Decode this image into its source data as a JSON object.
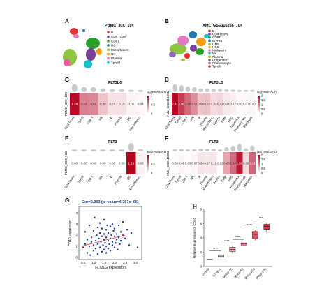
{
  "panels": {
    "A": {
      "letter": "A",
      "title": "PBMC_30K_10×",
      "clusters": [
        "B",
        "CD4 Tconv",
        "CD8T",
        "DC",
        "Mono/Macro",
        "NK",
        "Plasma",
        "Tprolif"
      ],
      "colors": [
        "#e6322d",
        "#7b3f98",
        "#2aa02b",
        "#1f77b4",
        "#8ec641",
        "#f39c12",
        "#e377c2",
        "#17becf"
      ],
      "map_labels": [
        "B",
        "Plasma",
        "DC",
        "CD8T",
        "Mono/Macro",
        "CD4 Tconv"
      ]
    },
    "B": {
      "letter": "B",
      "title": "AML_GSE116256_10×",
      "clusters": [
        "B",
        "CD4 Tconv",
        "CD8T",
        "EryPro",
        "GMP",
        "HSC",
        "Malignant",
        "NK",
        "Plasma",
        "Progenitor",
        "Promonocyte",
        "Tprolif"
      ],
      "colors": [
        "#e6322d",
        "#7b3f98",
        "#2aa02b",
        "#1f77b4",
        "#8ec641",
        "#f39c12",
        "#e377c2",
        "#17becf",
        "#bcbd22",
        "#8c564b",
        "#9467bd",
        "#d62728"
      ]
    },
    "C": {
      "letter": "C",
      "gene": "FLT3LG",
      "ylabel": "PBMC_30K_10X",
      "categories": [
        "CD4 Tconv",
        "Tprolif",
        "CD8 T",
        "NK",
        "B",
        "Plasma",
        "DC",
        "Mono/Macro"
      ],
      "values": [
        "1.24",
        "0.64",
        "0.61",
        "0.30",
        "0.15",
        "0.15",
        "0.05",
        "0.04"
      ],
      "nums": [
        1.24,
        0.64,
        0.61,
        0.3,
        0.15,
        0.15,
        0.05,
        0.04
      ],
      "legend_title": "log(TPM/10+1)",
      "legend_ticks": [
        "1",
        "0.5",
        "0"
      ],
      "max": 1.3
    },
    "D": {
      "letter": "D",
      "gene": "FLT3LG",
      "ylabel": "AML_GSE116256",
      "categories": [
        "CD4 Tconv",
        "Tprolif",
        "CD8 T",
        "NK",
        "B",
        "Plasma",
        "Mono/Macro",
        "EryPro",
        "GMP",
        "HSC",
        "Progenitor",
        "Promonocyte",
        "Malignant"
      ],
      "values": [
        "2.41",
        "1.90",
        "1.46",
        "1.12",
        "0.60",
        "0.62",
        "0.34",
        "0.41",
        "0.24",
        "0.17",
        "0.07",
        "0.07",
        "0.10"
      ],
      "nums": [
        2.41,
        1.9,
        1.46,
        1.12,
        0.6,
        0.62,
        0.34,
        0.41,
        0.24,
        0.17,
        0.07,
        0.07,
        0.1
      ],
      "legend_title": "log(TPM/10+1)",
      "legend_ticks": [
        "2",
        "1.5",
        "1",
        "0.5",
        "0"
      ],
      "max": 2.5
    },
    "E": {
      "letter": "E",
      "gene": "FLT3",
      "ylabel": "PBMC_30K_10X",
      "categories": [
        "CD4 Tconv",
        "Tprolif",
        "CD8 T",
        "NK",
        "B",
        "Plasma",
        "DC",
        "Mono/Macro"
      ],
      "values": [
        "0.00",
        "0.00",
        "0.00",
        "0.00",
        "0.00",
        "0.00",
        "1.19",
        "0.06"
      ],
      "nums": [
        0,
        0,
        0,
        0,
        0,
        0,
        1.19,
        0.06
      ],
      "legend_title": "log(TPM/10+1)",
      "legend_ticks": [
        "1",
        "0.5",
        "0"
      ],
      "max": 1.2
    },
    "F": {
      "letter": "F",
      "gene": "FLT3",
      "ylabel": "AML_GSE116256",
      "categories": [
        "CD4 Tconv",
        "Tprolif",
        "CD8 T",
        "NK",
        "B",
        "Plasma",
        "Mono/Macro",
        "EryPro",
        "GMP",
        "HSC",
        "Progenitor",
        "Promonocyte",
        "Malignant"
      ],
      "values": [
        "0.03",
        "0.08",
        "0.03",
        "0.07",
        "0.20",
        "0.17",
        "0.19",
        "0.02",
        "0.68",
        "1.16",
        "1.82",
        "0.30",
        "1.21"
      ],
      "nums": [
        0.03,
        0.08,
        0.03,
        0.07,
        0.2,
        0.17,
        0.19,
        0.02,
        0.68,
        1.16,
        1.82,
        0.3,
        1.21
      ],
      "legend_title": "log(TPM/10+1)",
      "legend_ticks": [
        "2",
        "1.5",
        "1",
        "0.5",
        "0"
      ],
      "max": 2.0
    },
    "G": {
      "letter": "G",
      "title": "Cor=0.363 (p−value=4.767e−06)",
      "xlabel": "FLT3LG expression",
      "ylabel": "CD40 expression",
      "xticks": [
        "0.5",
        "1.0",
        "1.5",
        "2.0",
        "2.5",
        "3.0"
      ],
      "yticks": [
        "0",
        "1",
        "2",
        "3",
        "4"
      ]
    },
    "H": {
      "letter": "H",
      "ylabel": "Relative expression of CD40",
      "categories": [
        "control",
        "group-1",
        "group-10",
        "group-50",
        "group-100",
        "group-200"
      ],
      "yticks": [
        "0",
        "2",
        "4",
        "6",
        "8"
      ],
      "sig": [
        "****",
        "****",
        "****",
        "****",
        "***"
      ]
    }
  },
  "chart_data": [
    {
      "type": "heatmap",
      "title": "FLT3LG",
      "dataset": "PBMC_30K_10X",
      "categories": [
        "CD4 Tconv",
        "Tprolif",
        "CD8 T",
        "NK",
        "B",
        "Plasma",
        "DC",
        "Mono/Macro"
      ],
      "values": [
        1.24,
        0.64,
        0.61,
        0.3,
        0.15,
        0.15,
        0.05,
        0.04
      ],
      "legend": "log(TPM/10+1)"
    },
    {
      "type": "heatmap",
      "title": "FLT3LG",
      "dataset": "AML_GSE116256",
      "categories": [
        "CD4 Tconv",
        "Tprolif",
        "CD8 T",
        "NK",
        "B",
        "Plasma",
        "Mono/Macro",
        "EryPro",
        "GMP",
        "HSC",
        "Progenitor",
        "Promonocyte",
        "Malignant"
      ],
      "values": [
        2.41,
        1.9,
        1.46,
        1.12,
        0.6,
        0.62,
        0.34,
        0.41,
        0.24,
        0.17,
        0.07,
        0.07,
        0.1
      ],
      "legend": "log(TPM/10+1)"
    },
    {
      "type": "heatmap",
      "title": "FLT3",
      "dataset": "PBMC_30K_10X",
      "categories": [
        "CD4 Tconv",
        "Tprolif",
        "CD8 T",
        "NK",
        "B",
        "Plasma",
        "DC",
        "Mono/Macro"
      ],
      "values": [
        0,
        0,
        0,
        0,
        0,
        0,
        1.19,
        0.06
      ],
      "legend": "log(TPM/10+1)"
    },
    {
      "type": "heatmap",
      "title": "FLT3",
      "dataset": "AML_GSE116256",
      "categories": [
        "CD4 Tconv",
        "Tprolif",
        "CD8 T",
        "NK",
        "B",
        "Plasma",
        "Mono/Macro",
        "EryPro",
        "GMP",
        "HSC",
        "Progenitor",
        "Promonocyte",
        "Malignant"
      ],
      "values": [
        0.03,
        0.08,
        0.03,
        0.07,
        0.2,
        0.17,
        0.19,
        0.02,
        0.68,
        1.16,
        1.82,
        0.3,
        1.21
      ],
      "legend": "log(TPM/10+1)"
    },
    {
      "type": "scatter",
      "title": "Cor=0.363 (p−value=4.767e−06)",
      "xlabel": "FLT3LG expression",
      "ylabel": "CD40 expression",
      "xlim": [
        0.3,
        3.3
      ],
      "ylim": [
        -0.2,
        4.6
      ],
      "fit": {
        "x0": 0.4,
        "y0": 1.0,
        "x1": 2.5,
        "y1": 2.0
      },
      "points": [
        [
          0.5,
          0.9
        ],
        [
          0.6,
          1.2
        ],
        [
          0.6,
          2.3
        ],
        [
          0.7,
          0.4
        ],
        [
          0.7,
          1.6
        ],
        [
          0.8,
          1.0
        ],
        [
          0.8,
          2.9
        ],
        [
          0.85,
          0.2
        ],
        [
          0.9,
          1.4
        ],
        [
          0.9,
          1.8
        ],
        [
          1.0,
          0.6
        ],
        [
          1.0,
          1.1
        ],
        [
          1.0,
          2.4
        ],
        [
          1.05,
          3.6
        ],
        [
          1.1,
          0.8
        ],
        [
          1.1,
          1.5
        ],
        [
          1.15,
          2.0
        ],
        [
          1.2,
          0.3
        ],
        [
          1.2,
          1.2
        ],
        [
          1.2,
          2.7
        ],
        [
          1.25,
          1.7
        ],
        [
          1.3,
          0.9
        ],
        [
          1.3,
          2.2
        ],
        [
          1.3,
          3.1
        ],
        [
          1.35,
          1.4
        ],
        [
          1.4,
          0.5
        ],
        [
          1.4,
          1.9
        ],
        [
          1.4,
          2.6
        ],
        [
          1.45,
          1.1
        ],
        [
          1.5,
          0.7
        ],
        [
          1.5,
          1.6
        ],
        [
          1.5,
          2.1
        ],
        [
          1.5,
          3.4
        ],
        [
          1.55,
          1.3
        ],
        [
          1.6,
          0.4
        ],
        [
          1.6,
          1.0
        ],
        [
          1.6,
          1.8
        ],
        [
          1.6,
          2.5
        ],
        [
          1.65,
          2.9
        ],
        [
          1.7,
          1.5
        ],
        [
          1.7,
          0.8
        ],
        [
          1.7,
          2.2
        ],
        [
          1.75,
          1.2
        ],
        [
          1.8,
          0.6
        ],
        [
          1.8,
          1.7
        ],
        [
          1.8,
          2.8
        ],
        [
          1.85,
          2.0
        ],
        [
          1.9,
          1.1
        ],
        [
          1.9,
          1.4
        ],
        [
          1.9,
          3.0
        ],
        [
          1.95,
          2.4
        ],
        [
          2.0,
          0.9
        ],
        [
          2.0,
          1.9
        ],
        [
          2.0,
          2.6
        ],
        [
          2.05,
          1.3
        ],
        [
          2.1,
          1.6
        ],
        [
          2.1,
          2.1
        ],
        [
          2.15,
          0.7
        ],
        [
          2.2,
          1.8
        ],
        [
          2.2,
          2.9
        ],
        [
          2.25,
          1.2
        ],
        [
          2.3,
          2.3
        ],
        [
          2.3,
          1.5
        ],
        [
          2.4,
          2.0
        ],
        [
          2.4,
          3.2
        ],
        [
          2.5,
          1.7
        ],
        [
          2.6,
          2.5
        ],
        [
          2.7,
          1.1
        ],
        [
          2.8,
          2.2
        ],
        [
          3.1,
          0.9
        ]
      ]
    },
    {
      "type": "box",
      "ylabel": "Relative expression of CD40",
      "categories": [
        "control",
        "group-1",
        "group-10",
        "group-50",
        "group-100",
        "group-200"
      ],
      "series": [
        {
          "q": [
            1.0,
            1.0,
            1.0,
            1.0,
            1.0
          ]
        },
        {
          "q": [
            1.2,
            1.3,
            1.45,
            1.6,
            1.8
          ]
        },
        {
          "q": [
            1.9,
            2.1,
            2.4,
            2.7,
            2.9
          ]
        },
        {
          "q": [
            2.9,
            3.0,
            3.15,
            3.3,
            3.4
          ]
        },
        {
          "q": [
            3.6,
            3.9,
            4.5,
            4.9,
            5.1
          ]
        },
        {
          "q": [
            4.9,
            5.2,
            5.6,
            5.9,
            6.1
          ]
        }
      ],
      "ylim": [
        0,
        8
      ]
    }
  ]
}
